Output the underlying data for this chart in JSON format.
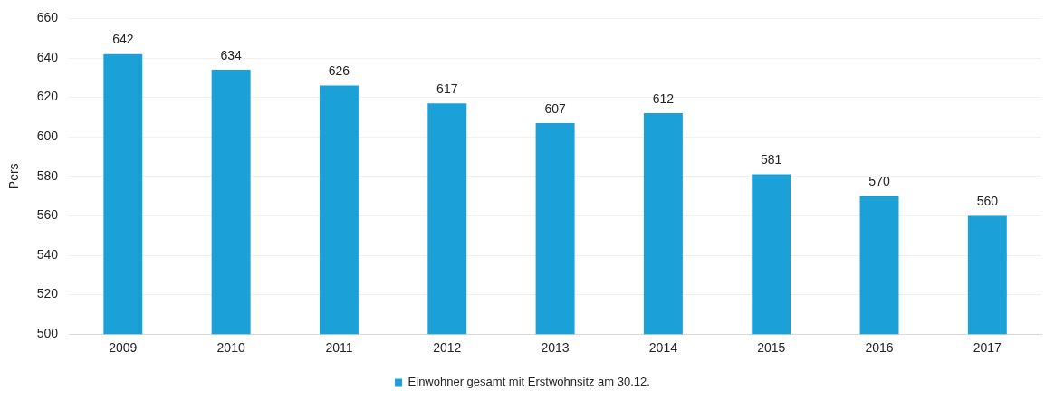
{
  "chart_data": {
    "type": "bar",
    "ylabel": "Pers",
    "categories": [
      "2009",
      "2010",
      "2011",
      "2012",
      "2013",
      "2014",
      "2015",
      "2016",
      "2017"
    ],
    "series": [
      {
        "name": "Einwohner gesamt mit Erstwohnsitz am 30.12.",
        "color": "#1ba0d8",
        "values": [
          642,
          634,
          626,
          617,
          607,
          612,
          581,
          570,
          560
        ]
      }
    ],
    "ylim": [
      500,
      660
    ],
    "yticks": [
      500,
      520,
      540,
      560,
      580,
      600,
      620,
      640,
      660
    ],
    "grid": "y",
    "legend": "bottom",
    "data_labels": true
  }
}
